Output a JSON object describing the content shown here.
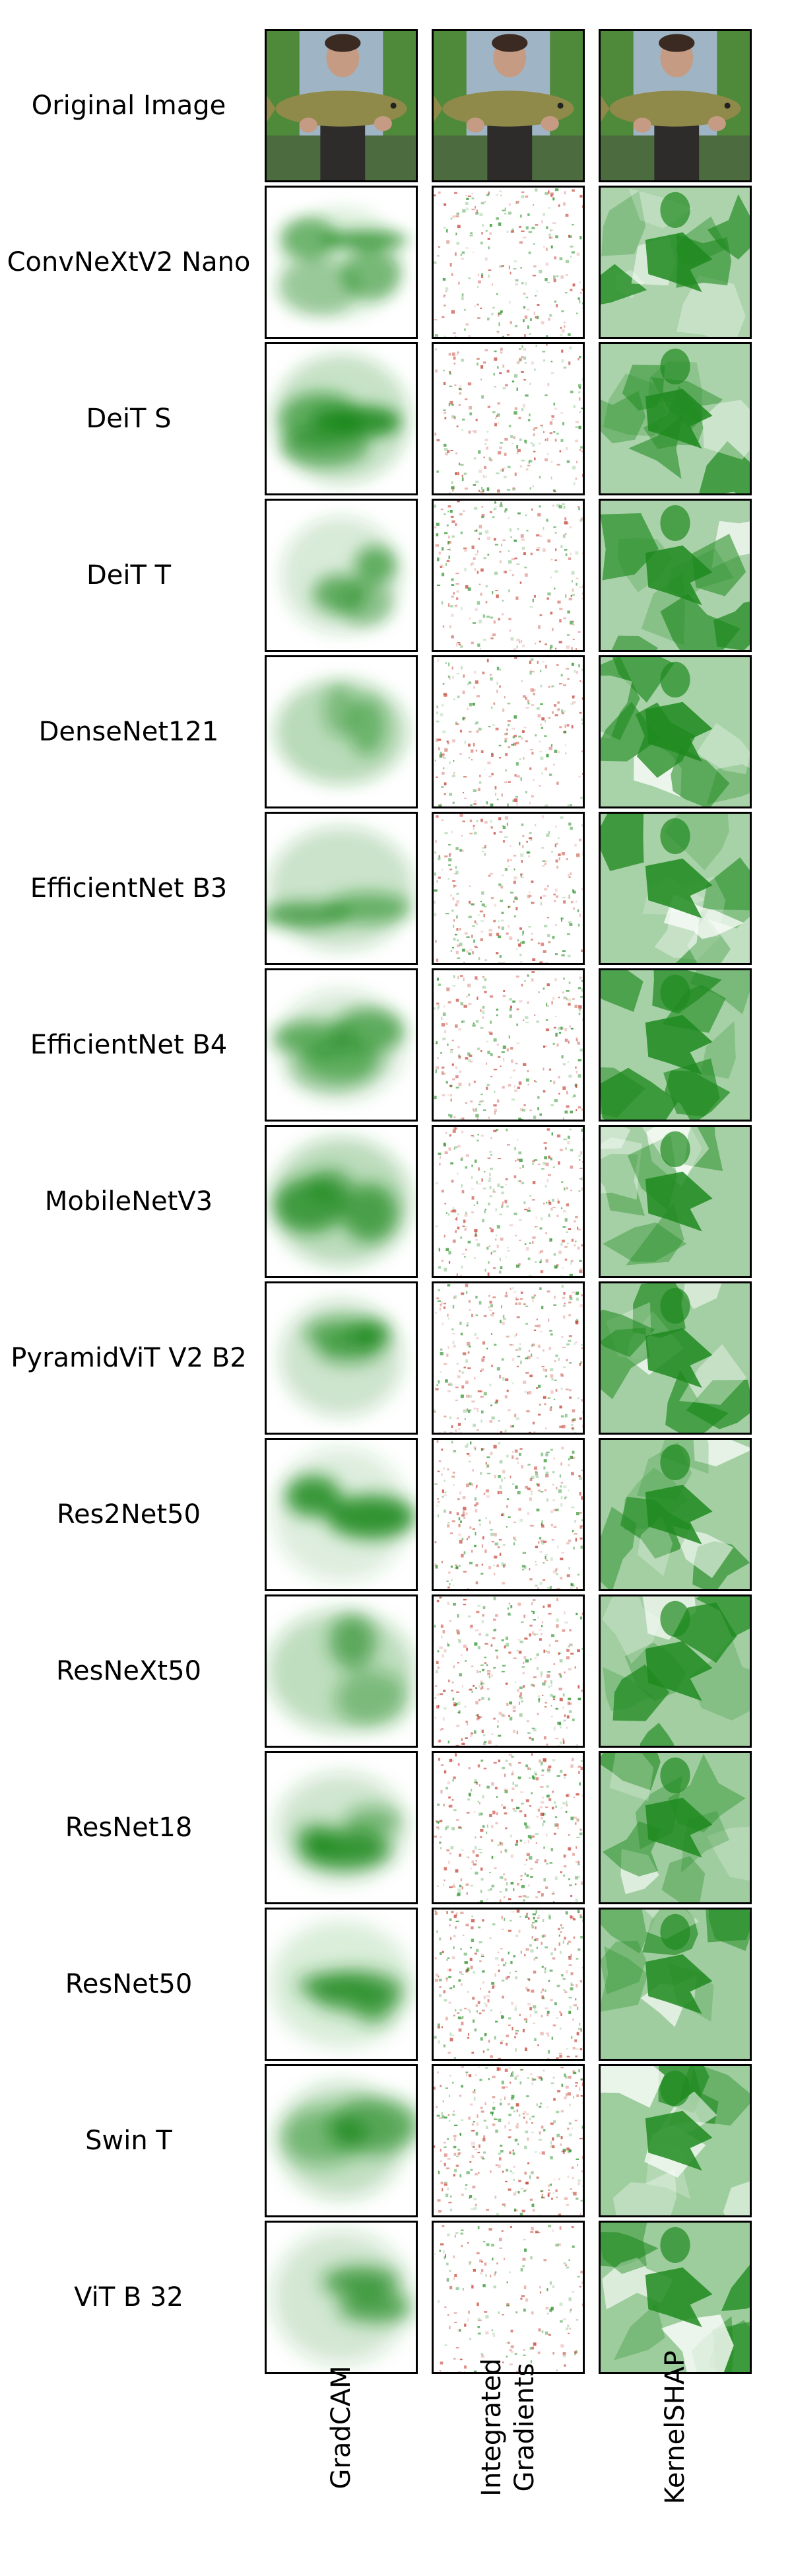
{
  "figure": {
    "rows": [
      {
        "label": "Original Image",
        "kind": "original"
      },
      {
        "label": "ConvNeXtV2 Nano",
        "kind": "model"
      },
      {
        "label": "DeiT S",
        "kind": "model"
      },
      {
        "label": "DeiT T",
        "kind": "model"
      },
      {
        "label": "DenseNet121",
        "kind": "model"
      },
      {
        "label": "EfficientNet B3",
        "kind": "model"
      },
      {
        "label": "EfficientNet B4",
        "kind": "model"
      },
      {
        "label": "MobileNetV3",
        "kind": "model"
      },
      {
        "label": "PyramidViT V2 B2",
        "kind": "model"
      },
      {
        "label": "Res2Net50",
        "kind": "model"
      },
      {
        "label": "ResNeXt50",
        "kind": "model"
      },
      {
        "label": "ResNet18",
        "kind": "model"
      },
      {
        "label": "ResNet50",
        "kind": "model"
      },
      {
        "label": "Swin T",
        "kind": "model"
      },
      {
        "label": "ViT B 32",
        "kind": "model"
      }
    ],
    "columns": [
      {
        "lines": [
          "GradCAM"
        ],
        "method": "gradcam"
      },
      {
        "lines": [
          "Integrated",
          "Gradients"
        ],
        "method": "ig"
      },
      {
        "lines": [
          "KernelSHAP"
        ],
        "method": "shap"
      }
    ],
    "colors": {
      "attribution_green": "#1f8a1f",
      "attribution_red": "#c0392b",
      "border": "#000000",
      "photo_sky": "#9fb4c4",
      "photo_foliage": "#4f8a3a",
      "photo_fish": "#8f8a4a",
      "photo_skin": "#c59c83",
      "photo_hair": "#3a2a22"
    }
  }
}
